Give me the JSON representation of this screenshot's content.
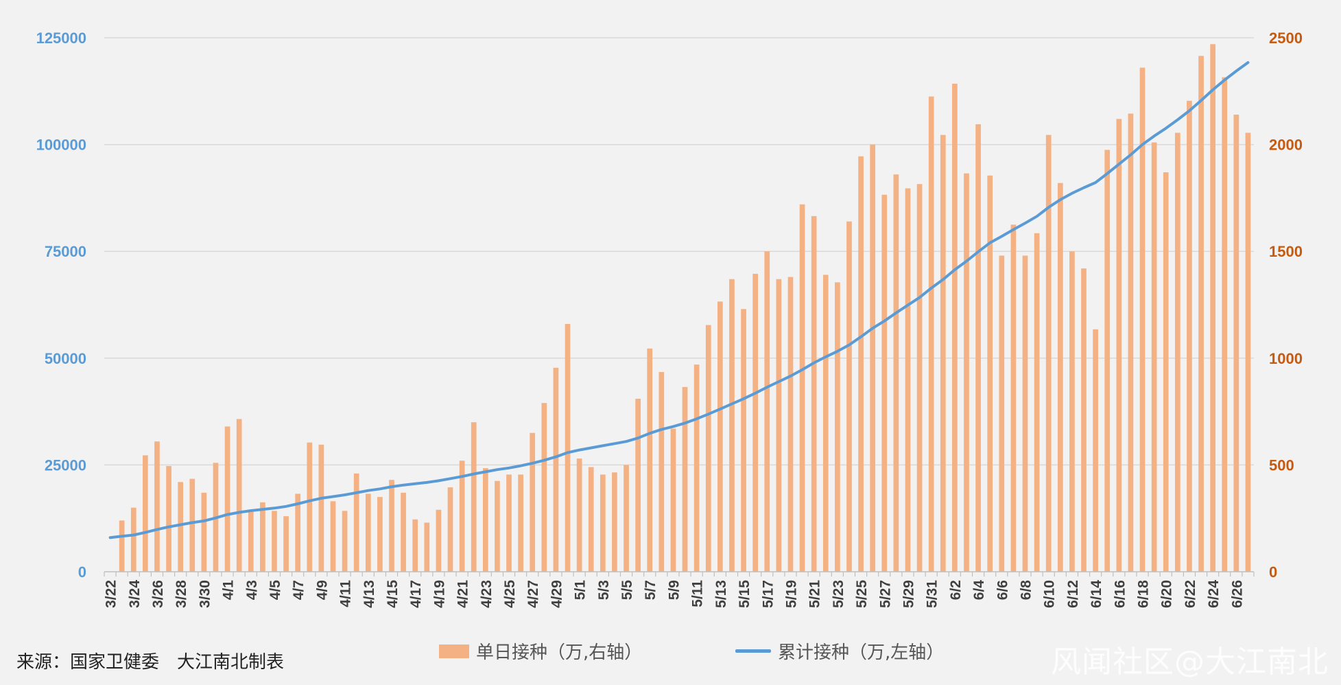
{
  "source_note": "来源：国家卫健委　大江南北制表",
  "watermark": "风闻社区@大江南北",
  "colors": {
    "bar": "#f4b183",
    "line": "#5b9bd5",
    "left_axis": "#5b9bd5",
    "right_axis": "#c55a11",
    "grid": "#d9d9d9",
    "background": "#f2f2f2"
  },
  "chart_data": {
    "type": "bar",
    "title": "",
    "x": [
      "3/22",
      "3/23",
      "3/24",
      "3/25",
      "3/26",
      "3/27",
      "3/28",
      "3/29",
      "3/30",
      "3/31",
      "4/1",
      "4/2",
      "4/3",
      "4/4",
      "4/5",
      "4/6",
      "4/7",
      "4/8",
      "4/9",
      "4/10",
      "4/11",
      "4/12",
      "4/13",
      "4/14",
      "4/15",
      "4/16",
      "4/17",
      "4/18",
      "4/19",
      "4/20",
      "4/21",
      "4/22",
      "4/23",
      "4/24",
      "4/25",
      "4/26",
      "4/27",
      "4/28",
      "4/29",
      "4/30",
      "5/1",
      "5/2",
      "5/3",
      "5/4",
      "5/5",
      "5/6",
      "5/7",
      "5/8",
      "5/9",
      "5/10",
      "5/11",
      "5/12",
      "5/13",
      "5/14",
      "5/15",
      "5/16",
      "5/17",
      "5/18",
      "5/19",
      "5/20",
      "5/21",
      "5/22",
      "5/23",
      "5/24",
      "5/25",
      "5/26",
      "5/27",
      "5/28",
      "5/29",
      "5/30",
      "5/31",
      "6/1",
      "6/2",
      "6/3",
      "6/4",
      "6/5",
      "6/6",
      "6/7",
      "6/8",
      "6/9",
      "6/10",
      "6/11",
      "6/12",
      "6/13",
      "6/14",
      "6/15",
      "6/16",
      "6/17",
      "6/18",
      "6/19",
      "6/20",
      "6/21",
      "6/22",
      "6/23",
      "6/24",
      "6/25",
      "6/26",
      "6/27"
    ],
    "x_tick_labels": [
      "3/22",
      "3/24",
      "3/26",
      "3/28",
      "3/30",
      "4/1",
      "4/3",
      "4/5",
      "4/7",
      "4/9",
      "4/11",
      "4/13",
      "4/15",
      "4/17",
      "4/19",
      "4/21",
      "4/23",
      "4/25",
      "4/27",
      "4/29",
      "5/1",
      "5/3",
      "5/5",
      "5/7",
      "5/9",
      "5/11",
      "5/13",
      "5/15",
      "5/17",
      "5/19",
      "5/21",
      "5/23",
      "5/25",
      "5/27",
      "5/29",
      "5/31",
      "6/2",
      "6/4",
      "6/6",
      "6/8",
      "6/10",
      "6/12",
      "6/14",
      "6/16",
      "6/18",
      "6/20",
      "6/22",
      "6/24",
      "6/26"
    ],
    "series": [
      {
        "name": "单日接种（万,右轴）",
        "type": "bar",
        "axis": "right",
        "values": [
          0,
          240,
          300,
          545,
          610,
          495,
          420,
          435,
          370,
          510,
          680,
          715,
          285,
          325,
          285,
          260,
          365,
          605,
          595,
          330,
          285,
          460,
          365,
          350,
          430,
          370,
          245,
          230,
          290,
          395,
          520,
          700,
          485,
          425,
          455,
          455,
          650,
          790,
          955,
          1160,
          530,
          490,
          455,
          465,
          500,
          810,
          1045,
          935,
          670,
          865,
          970,
          1155,
          1265,
          1370,
          1230,
          1395,
          1500,
          1370,
          1380,
          1720,
          1665,
          1390,
          1355,
          1640,
          1945,
          2000,
          1765,
          1860,
          1795,
          1815,
          2225,
          2045,
          2285,
          1865,
          2095,
          1855,
          1480,
          1625,
          1480,
          1585,
          2045,
          1820,
          1500,
          1420,
          1135,
          1975,
          2120,
          2145,
          2360,
          2010,
          1870,
          2055,
          2205,
          2415,
          2470,
          2315,
          2140,
          2055
        ]
      },
      {
        "name": "累计接种（万,左轴）",
        "type": "line",
        "axis": "left",
        "values": [
          8000,
          8300,
          8600,
          9200,
          9900,
          10500,
          11000,
          11500,
          11900,
          12600,
          13400,
          13900,
          14300,
          14600,
          14900,
          15300,
          15900,
          16600,
          17200,
          17600,
          18000,
          18500,
          19000,
          19400,
          19900,
          20300,
          20600,
          20900,
          21300,
          21800,
          22300,
          22900,
          23400,
          23900,
          24300,
          24800,
          25400,
          26100,
          26900,
          27900,
          28500,
          29000,
          29500,
          30000,
          30500,
          31300,
          32400,
          33300,
          34000,
          34800,
          35800,
          36900,
          38100,
          39300,
          40500,
          41800,
          43200,
          44500,
          45800,
          47300,
          48900,
          50300,
          51600,
          53100,
          55000,
          57000,
          58700,
          60600,
          62400,
          64200,
          66400,
          68400,
          70700,
          72700,
          74900,
          77000,
          78500,
          80100,
          81600,
          83200,
          85300,
          87100,
          88600,
          89900,
          91100,
          93200,
          95400,
          97600,
          100000,
          102000,
          103800,
          105800,
          107900,
          110300,
          112800,
          115100,
          117200,
          119200
        ]
      }
    ],
    "left_axis": {
      "ylim": [
        0,
        125000
      ],
      "ticks": [
        0,
        25000,
        50000,
        75000,
        100000,
        125000
      ]
    },
    "right_axis": {
      "ylim": [
        0,
        2500
      ],
      "ticks": [
        0,
        500,
        1000,
        1500,
        2000,
        2500
      ]
    },
    "grid": true,
    "legend_position": "bottom-center"
  }
}
